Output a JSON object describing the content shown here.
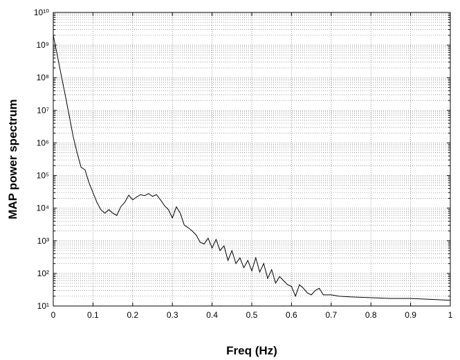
{
  "chart_data": {
    "type": "line",
    "xlabel": "Freq (Hz)",
    "ylabel": "MAP power spectrum",
    "x": [
      0,
      0.01,
      0.02,
      0.03,
      0.04,
      0.05,
      0.06,
      0.07,
      0.08,
      0.09,
      0.1,
      0.11,
      0.12,
      0.13,
      0.14,
      0.15,
      0.16,
      0.17,
      0.18,
      0.19,
      0.2,
      0.21,
      0.22,
      0.23,
      0.24,
      0.25,
      0.26,
      0.27,
      0.28,
      0.29,
      0.3,
      0.31,
      0.32,
      0.33,
      0.34,
      0.35,
      0.36,
      0.37,
      0.38,
      0.39,
      0.4,
      0.41,
      0.42,
      0.43,
      0.44,
      0.45,
      0.46,
      0.47,
      0.48,
      0.49,
      0.5,
      0.51,
      0.52,
      0.53,
      0.54,
      0.55,
      0.56,
      0.57,
      0.58,
      0.59,
      0.6,
      0.61,
      0.62,
      0.63,
      0.64,
      0.65,
      0.66,
      0.67,
      0.68,
      0.7,
      0.72,
      0.75,
      0.8,
      0.85,
      0.9,
      0.95,
      1
    ],
    "values": [
      2000000000,
      500000000,
      120000000,
      30000000,
      7000000,
      1600000,
      500000,
      180000,
      150000,
      60000,
      30000,
      15000,
      9000,
      7000,
      9000,
      7000,
      6000,
      11000,
      15000,
      25000,
      18000,
      22000,
      26000,
      24000,
      28000,
      23000,
      26000,
      18000,
      12000,
      9000,
      5000,
      11000,
      7000,
      3000,
      2500,
      2000,
      1500,
      900,
      800,
      1200,
      600,
      1100,
      500,
      700,
      250,
      500,
      200,
      300,
      150,
      250,
      120,
      300,
      110,
      200,
      70,
      130,
      50,
      80,
      60,
      45,
      40,
      20,
      45,
      35,
      25,
      22,
      30,
      35,
      22,
      22,
      20,
      19,
      18,
      17,
      17,
      16,
      15
    ],
    "color": "#000000",
    "log_y": true,
    "grid": true,
    "xlim": [
      0,
      1
    ],
    "xticks": [
      0,
      0.1,
      0.2,
      0.3,
      0.4,
      0.5,
      0.6,
      0.7,
      0.8,
      0.9,
      1
    ],
    "ylim": [
      10,
      10000000000
    ],
    "yticks": [
      {
        "value": 10,
        "label": "10¹"
      },
      {
        "value": 100,
        "label": "10²"
      },
      {
        "value": 1000,
        "label": "10³"
      },
      {
        "value": 10000,
        "label": "10⁴"
      },
      {
        "value": 100000,
        "label": "10⁵"
      },
      {
        "value": 1000000,
        "label": "10⁶"
      },
      {
        "value": 10000000,
        "label": "10⁷"
      },
      {
        "value": 100000000,
        "label": "10⁸"
      },
      {
        "value": 1000000000,
        "label": "10⁹"
      },
      {
        "value": 10000000000,
        "label": "10¹⁰"
      }
    ]
  }
}
